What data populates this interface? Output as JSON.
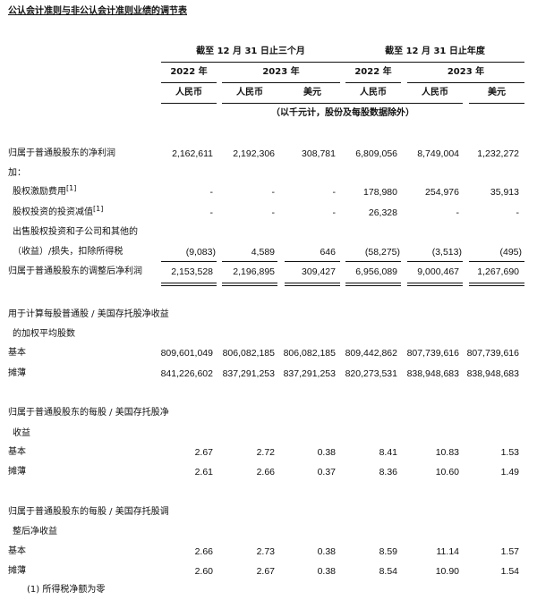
{
  "title": "公认会计准则与非公认会计准则业绩的调节表",
  "header": {
    "period_three_months": "截至 12 月 31 日止三个月",
    "period_year": "截至 12 月 31 日止年度",
    "years": [
      "2022 年",
      "2023 年",
      "2022 年",
      "2023 年"
    ],
    "currencies": [
      "人民币",
      "人民币",
      "美元",
      "人民币",
      "人民币",
      "美元"
    ],
    "unit_note": "（以千元计，股份及每股数据除外）"
  },
  "rows": [
    {
      "label": "归属于普通股股东的净利润",
      "values": [
        "2,162,611",
        "2,192,306",
        "308,781",
        "6,809,056",
        "8,749,004",
        "1,232,272"
      ]
    },
    {
      "label": "加：",
      "values": []
    },
    {
      "label": "股权激励费用",
      "sup": "[1]",
      "indent": true,
      "values": [
        "-",
        "-",
        "-",
        "178,980",
        "254,976",
        "35,913"
      ]
    },
    {
      "label": "股权投资的投资减值",
      "sup": "[1]",
      "indent": true,
      "values": [
        "-",
        "-",
        "-",
        "26,328",
        "-",
        "-"
      ]
    },
    {
      "label": "出售股权投资和子公司和其他的",
      "indent": true,
      "values": []
    },
    {
      "label": "（收益）/损失，扣除所得税",
      "indent": true,
      "values": [
        "(9,083)",
        "4,589",
        "646",
        "(58,275)",
        "(3,513)",
        "(495)"
      ]
    },
    {
      "label": "归属于普通股股东的调整后净利润",
      "values": [
        "2,153,528",
        "2,196,895",
        "309,427",
        "6,956,089",
        "9,000,467",
        "1,267,690"
      ]
    },
    {
      "label": "用于计算每股普通股 / 美国存托股净收益",
      "values": []
    },
    {
      "label": "的加权平均股数",
      "indent": true,
      "values": []
    },
    {
      "label": "基本",
      "values": [
        "809,601,049",
        "806,082,185",
        "806,082,185",
        "809,442,862",
        "807,739,616",
        "807,739,616"
      ]
    },
    {
      "label": "摊薄",
      "values": [
        "841,226,602",
        "837,291,253",
        "837,291,253",
        "820,273,531",
        "838,948,683",
        "838,948,683"
      ]
    },
    {
      "label": "归属于普通股股东的每股 / 美国存托股净",
      "values": []
    },
    {
      "label": "收益",
      "indent": true,
      "values": []
    },
    {
      "label": "基本",
      "values": [
        "2.67",
        "2.72",
        "0.38",
        "8.41",
        "10.83",
        "1.53"
      ]
    },
    {
      "label": "摊薄",
      "values": [
        "2.61",
        "2.66",
        "0.37",
        "8.36",
        "10.60",
        "1.49"
      ]
    },
    {
      "label": "归属于普通股股东的每股 / 美国存托股调",
      "values": []
    },
    {
      "label": "整后净收益",
      "indent": true,
      "values": []
    },
    {
      "label": "基本",
      "values": [
        "2.66",
        "2.73",
        "0.38",
        "8.59",
        "11.14",
        "1.57"
      ]
    },
    {
      "label": "摊薄",
      "values": [
        "2.60",
        "2.67",
        "0.38",
        "8.54",
        "10.90",
        "1.54"
      ]
    }
  ],
  "footnote": "(1)  所得税净额为零"
}
